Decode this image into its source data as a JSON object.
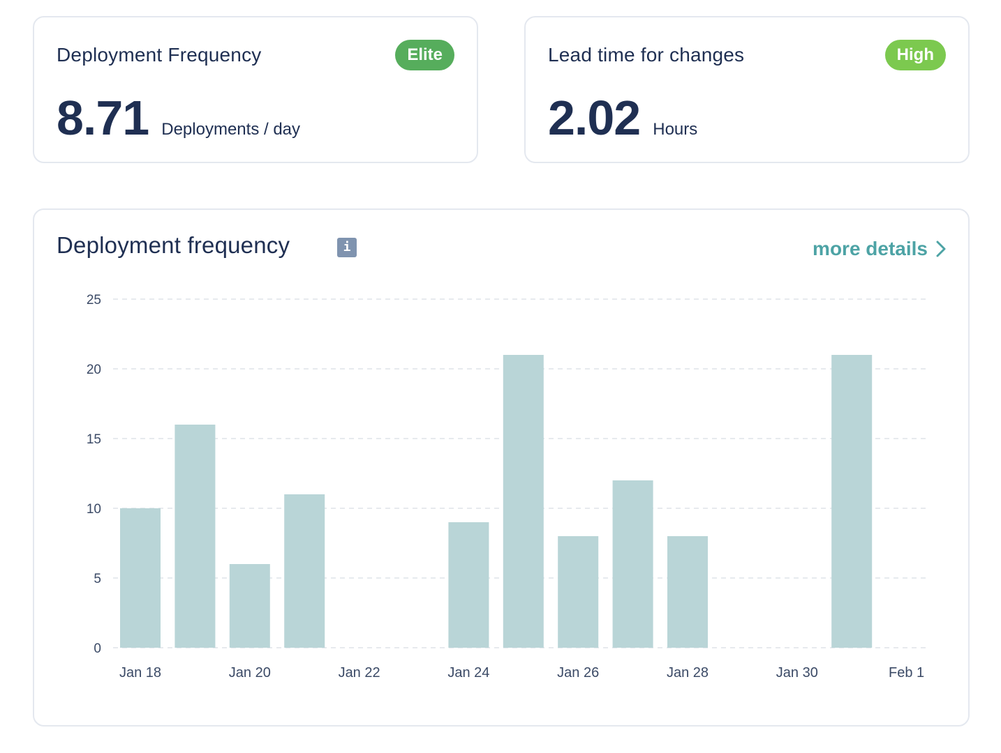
{
  "colors": {
    "text": "#1f2f52",
    "elite": "#56ad5c",
    "high": "#7cc94f",
    "accent": "#4da3a5",
    "bar": "#b9d5d7",
    "grid": "#dfe3e8",
    "info_icon": "#7f93af"
  },
  "cards": [
    {
      "title": "Deployment Frequency",
      "badge": "Elite",
      "value": "8.71",
      "unit": "Deployments / day"
    },
    {
      "title": "Lead time for changes",
      "badge": "High",
      "value": "2.02",
      "unit": "Hours"
    }
  ],
  "chart_panel": {
    "title": "Deployment frequency",
    "info_icon": "i",
    "more_details_label": "more details"
  },
  "chart_data": {
    "type": "bar",
    "categories": [
      "Jan 18",
      "Jan 19",
      "Jan 20",
      "Jan 21",
      "Jan 22",
      "Jan 23",
      "Jan 24",
      "Jan 25",
      "Jan 26",
      "Jan 27",
      "Jan 28",
      "Jan 29",
      "Jan 30",
      "Jan 31",
      "Feb 1"
    ],
    "values": [
      10,
      16,
      6,
      11,
      0,
      0,
      9,
      21,
      8,
      12,
      8,
      0,
      0,
      21,
      0
    ],
    "x_tick_labels": [
      "Jan 18",
      "Jan 20",
      "Jan 22",
      "Jan 24",
      "Jan 26",
      "Jan 28",
      "Jan 30",
      "Feb 1"
    ],
    "y_ticks": [
      0,
      5,
      10,
      15,
      20,
      25
    ],
    "ylim": [
      0,
      25
    ],
    "grid": true,
    "title": "",
    "xlabel": "",
    "ylabel": ""
  }
}
